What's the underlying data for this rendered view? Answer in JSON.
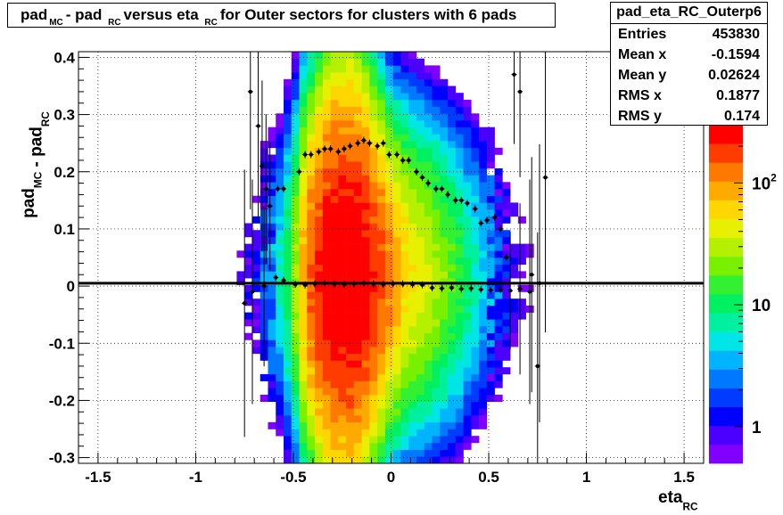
{
  "chart_data": {
    "type": "heatmap",
    "title": {
      "parts": [
        {
          "text": "pad",
          "sub": "MC"
        },
        {
          "text": " - pad",
          "sub": "RC"
        },
        {
          "text": " versus eta",
          "sub": "RC"
        },
        {
          "text": " for Outer sectors for clusters with 6 pads",
          "sub": ""
        }
      ]
    },
    "xlabel": {
      "text": "eta",
      "sub": "RC"
    },
    "ylabel": {
      "parts": [
        {
          "text": "pad",
          "sub": "MC"
        },
        {
          "text": " - pad",
          "sub": "RC"
        }
      ]
    },
    "xlim": [
      -1.6,
      1.6
    ],
    "ylim": [
      -0.31,
      0.41
    ],
    "xticks": [
      {
        "v": -1.5,
        "label": "-1.5"
      },
      {
        "v": -1,
        "label": "-1"
      },
      {
        "v": -0.5,
        "label": "-0.5"
      },
      {
        "v": 0,
        "label": "0"
      },
      {
        "v": 0.5,
        "label": "0.5"
      },
      {
        "v": 1,
        "label": "1"
      },
      {
        "v": 1.5,
        "label": "1.5"
      }
    ],
    "yticks": [
      {
        "v": -0.3,
        "label": "-0.3"
      },
      {
        "v": -0.2,
        "label": "-0.2"
      },
      {
        "v": -0.1,
        "label": "-0.1"
      },
      {
        "v": 0,
        "label": "0"
      },
      {
        "v": 0.1,
        "label": "0.1"
      },
      {
        "v": 0.2,
        "label": "0.2"
      },
      {
        "v": 0.3,
        "label": "0.3"
      },
      {
        "v": 0.4,
        "label": "0.4"
      }
    ],
    "grid": true,
    "colorscale": {
      "type": "log",
      "min": 0.5,
      "max": 300,
      "labels": [
        {
          "v": 1,
          "label": "1"
        },
        {
          "v": 10,
          "label": "10"
        },
        {
          "v": 100,
          "label": "10",
          "sup": "2"
        }
      ],
      "colors": [
        "#7f00ff",
        "#4b00ff",
        "#0000ff",
        "#003cff",
        "#0078ff",
        "#00b4ff",
        "#00e6e6",
        "#00f0a0",
        "#00f060",
        "#32f032",
        "#78f000",
        "#b4f000",
        "#e6f000",
        "#ffd700",
        "#ffaa00",
        "#ff7800",
        "#ff3c00",
        "#ff0000"
      ]
    },
    "density_columns": [
      {
        "x": -0.77,
        "c": 0.5,
        "s": 0.12
      },
      {
        "x": -0.73,
        "c": 0.8,
        "s": 0.12
      },
      {
        "x": -0.69,
        "c": 1.0,
        "s": 0.13
      },
      {
        "x": -0.65,
        "c": 2.2,
        "s": 0.13
      },
      {
        "x": -0.61,
        "c": 3.5,
        "s": 0.13
      },
      {
        "x": -0.57,
        "c": 6,
        "s": 0.13
      },
      {
        "x": -0.53,
        "c": 11,
        "s": 0.14
      },
      {
        "x": -0.49,
        "c": 28,
        "s": 0.14
      },
      {
        "x": -0.45,
        "c": 80,
        "s": 0.15
      },
      {
        "x": -0.41,
        "c": 150,
        "s": 0.15
      },
      {
        "x": -0.37,
        "c": 210,
        "s": 0.16
      },
      {
        "x": -0.33,
        "c": 260,
        "s": 0.17
      },
      {
        "x": -0.29,
        "c": 290,
        "s": 0.18
      },
      {
        "x": -0.25,
        "c": 300,
        "s": 0.18
      },
      {
        "x": -0.21,
        "c": 300,
        "s": 0.18
      },
      {
        "x": -0.17,
        "c": 290,
        "s": 0.17
      },
      {
        "x": -0.13,
        "c": 260,
        "s": 0.16
      },
      {
        "x": -0.09,
        "c": 200,
        "s": 0.15
      },
      {
        "x": -0.05,
        "c": 160,
        "s": 0.14
      },
      {
        "x": -0.01,
        "c": 120,
        "s": 0.13
      },
      {
        "x": 0.03,
        "c": 85,
        "s": 0.13
      },
      {
        "x": 0.07,
        "c": 60,
        "s": 0.13
      },
      {
        "x": 0.11,
        "c": 48,
        "s": 0.13
      },
      {
        "x": 0.15,
        "c": 40,
        "s": 0.13
      },
      {
        "x": 0.19,
        "c": 34,
        "s": 0.13
      },
      {
        "x": 0.23,
        "c": 28,
        "s": 0.13
      },
      {
        "x": 0.27,
        "c": 22,
        "s": 0.13
      },
      {
        "x": 0.31,
        "c": 17,
        "s": 0.13
      },
      {
        "x": 0.35,
        "c": 13,
        "s": 0.13
      },
      {
        "x": 0.39,
        "c": 9,
        "s": 0.13
      },
      {
        "x": 0.43,
        "c": 6.5,
        "s": 0.13
      },
      {
        "x": 0.47,
        "c": 4.5,
        "s": 0.13
      },
      {
        "x": 0.51,
        "c": 3.2,
        "s": 0.13
      },
      {
        "x": 0.55,
        "c": 2.2,
        "s": 0.13
      },
      {
        "x": 0.59,
        "c": 1.4,
        "s": 0.12
      },
      {
        "x": 0.63,
        "c": 0.9,
        "s": 0.12
      },
      {
        "x": 0.67,
        "c": 0.6,
        "s": 0.12
      },
      {
        "x": 0.71,
        "c": 0.5,
        "s": 0.12
      }
    ],
    "upper_profile": [
      [
        -0.75,
        -0.03
      ],
      [
        -0.72,
        0.34
      ],
      [
        -0.68,
        0.28
      ],
      [
        -0.66,
        0.21
      ],
      [
        -0.64,
        0.17
      ],
      [
        -0.62,
        0.14
      ],
      [
        -0.58,
        0.17
      ],
      [
        -0.55,
        0.17
      ],
      [
        -0.47,
        0.2
      ],
      [
        -0.44,
        0.23
      ],
      [
        -0.41,
        0.23
      ],
      [
        -0.37,
        0.235
      ],
      [
        -0.34,
        0.24
      ],
      [
        -0.31,
        0.24
      ],
      [
        -0.27,
        0.235
      ],
      [
        -0.24,
        0.24
      ],
      [
        -0.21,
        0.245
      ],
      [
        -0.17,
        0.25
      ],
      [
        -0.14,
        0.255
      ],
      [
        -0.11,
        0.25
      ],
      [
        -0.07,
        0.245
      ],
      [
        -0.04,
        0.25
      ],
      [
        -0.01,
        0.23
      ],
      [
        0.03,
        0.23
      ],
      [
        0.06,
        0.22
      ],
      [
        0.09,
        0.22
      ],
      [
        0.13,
        0.2
      ],
      [
        0.16,
        0.19
      ],
      [
        0.19,
        0.18
      ],
      [
        0.23,
        0.17
      ],
      [
        0.26,
        0.17
      ],
      [
        0.29,
        0.16
      ],
      [
        0.33,
        0.15
      ],
      [
        0.36,
        0.15
      ],
      [
        0.39,
        0.145
      ],
      [
        0.43,
        0.135
      ],
      [
        0.46,
        0.11
      ],
      [
        0.49,
        0.115
      ],
      [
        0.53,
        0.12
      ],
      [
        0.56,
        0.1
      ],
      [
        0.59,
        0.05
      ],
      [
        0.63,
        0.37
      ],
      [
        0.66,
        0.34
      ],
      [
        0.72,
        0.02
      ],
      [
        0.75,
        -0.14
      ],
      [
        0.79,
        0.19
      ]
    ],
    "lower_profile": [
      [
        -0.71,
        -0.01
      ],
      [
        -0.65,
        0.0
      ],
      [
        -0.59,
        0.015
      ],
      [
        -0.55,
        0.01
      ],
      [
        -0.49,
        0.003
      ],
      [
        -0.44,
        0.002
      ],
      [
        -0.39,
        0.004
      ],
      [
        -0.34,
        0.005
      ],
      [
        -0.29,
        0.004
      ],
      [
        -0.24,
        0.003
      ],
      [
        -0.19,
        0.004
      ],
      [
        -0.14,
        0.005
      ],
      [
        -0.09,
        0.004
      ],
      [
        -0.04,
        0.003
      ],
      [
        0.01,
        0.004
      ],
      [
        0.06,
        0.004
      ],
      [
        0.11,
        0.003
      ],
      [
        0.16,
        0.002
      ],
      [
        0.21,
        -0.003
      ],
      [
        0.26,
        -0.004
      ],
      [
        0.31,
        -0.003
      ],
      [
        0.36,
        -0.005
      ],
      [
        0.41,
        -0.004
      ],
      [
        0.46,
        -0.006
      ],
      [
        0.51,
        -0.007
      ],
      [
        0.56,
        -0.006
      ],
      [
        0.61,
        -0.008
      ],
      [
        0.66,
        -0.005
      ],
      [
        0.71,
        -0.01
      ],
      [
        0.76,
        0.005
      ]
    ],
    "reference_line_y": 0.005
  },
  "stats": {
    "name": "pad_eta_RC_Outerp6",
    "rows": [
      {
        "label": "Entries",
        "value": "453830"
      },
      {
        "label": "Mean x",
        "value": "-0.1594"
      },
      {
        "label": "Mean y",
        "value": "0.02624"
      },
      {
        "label": "RMS x",
        "value": "0.1877"
      },
      {
        "label": "RMS y",
        "value": "0.174"
      }
    ]
  },
  "colors": {
    "frame": "#000000",
    "grid": "#000000",
    "background": "#ffffff",
    "marker": "#000000"
  }
}
